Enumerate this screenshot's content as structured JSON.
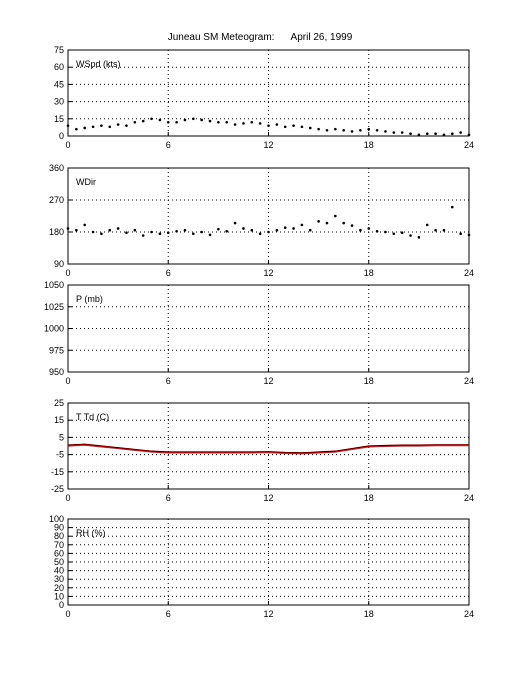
{
  "title": "Juneau SM Meteogram:      April 26, 1999",
  "chart_data": [
    {
      "type": "scatter",
      "ylabel": "WSpd (kts)",
      "xlim": [
        0,
        24
      ],
      "ylim": [
        0,
        75
      ],
      "xticks": [
        0,
        6,
        12,
        18,
        24
      ],
      "yticks": [
        0,
        15,
        30,
        45,
        60,
        75
      ],
      "grid": true,
      "series": [
        {
          "color": "#000000",
          "x": [
            0,
            0.5,
            1,
            1.5,
            2,
            2.5,
            3,
            3.5,
            4,
            4.5,
            5,
            5.5,
            6,
            6.5,
            7,
            7.5,
            8,
            8.5,
            9,
            9.5,
            10,
            10.5,
            11,
            11.5,
            12,
            12.5,
            13,
            13.5,
            14,
            14.5,
            15,
            15.5,
            16,
            16.5,
            17,
            17.5,
            18,
            18.5,
            19,
            19.5,
            20,
            20.5,
            21,
            21.5,
            22,
            22.5,
            23,
            23.5,
            24
          ],
          "y": [
            9,
            6,
            7,
            8,
            9,
            8,
            10,
            9,
            12,
            13,
            15,
            14,
            12,
            12,
            14,
            15,
            14,
            13,
            12,
            12,
            10,
            11,
            12,
            11,
            9,
            10,
            8,
            9,
            8,
            7,
            6,
            5,
            6,
            5,
            4,
            5,
            6,
            5,
            4,
            3,
            3,
            2,
            1,
            2,
            2,
            1,
            2,
            3,
            1
          ]
        }
      ]
    },
    {
      "type": "scatter",
      "ylabel": "WDir",
      "xlim": [
        0,
        24
      ],
      "ylim": [
        90,
        360
      ],
      "xticks": [
        0,
        6,
        12,
        18,
        24
      ],
      "yticks": [
        90,
        180,
        270,
        360
      ],
      "grid": true,
      "series": [
        {
          "color": "#000000",
          "x": [
            0,
            0.5,
            1,
            1.5,
            2,
            2.5,
            3,
            3.5,
            4,
            4.5,
            5,
            5.5,
            6,
            6.5,
            7,
            7.5,
            8,
            8.5,
            9,
            9.5,
            10,
            10.5,
            11,
            11.5,
            12,
            12.5,
            13,
            13.5,
            14,
            14.5,
            15,
            15.5,
            16,
            16.5,
            17,
            17.5,
            18,
            18.5,
            19,
            19.5,
            20,
            20.5,
            21,
            21.5,
            22,
            22.5,
            23,
            23.5,
            24
          ],
          "y": [
            190,
            185,
            200,
            180,
            175,
            185,
            190,
            178,
            185,
            170,
            180,
            175,
            178,
            182,
            185,
            175,
            180,
            172,
            188,
            182,
            205,
            190,
            185,
            175,
            180,
            185,
            192,
            190,
            200,
            185,
            210,
            205,
            225,
            205,
            198,
            185,
            190,
            182,
            180,
            175,
            178,
            170,
            165,
            200,
            185,
            185,
            250,
            175,
            172
          ]
        }
      ]
    },
    {
      "type": "line",
      "ylabel": "P (mb)",
      "xlim": [
        0,
        24
      ],
      "ylim": [
        950,
        1050
      ],
      "xticks": [
        0,
        6,
        12,
        18,
        24
      ],
      "yticks": [
        950,
        975,
        1000,
        1025,
        1050
      ],
      "grid": true,
      "series": []
    },
    {
      "type": "line",
      "ylabel": "T Td (C)",
      "xlim": [
        0,
        24
      ],
      "ylim": [
        -25,
        25
      ],
      "xticks": [
        0,
        6,
        12,
        18,
        24
      ],
      "yticks": [
        -25,
        -15,
        -5,
        5,
        15,
        25
      ],
      "grid": true,
      "series": [
        {
          "color": "#000000",
          "x": [
            0,
            1,
            2,
            3,
            4,
            5,
            6,
            7,
            8,
            9,
            10,
            11,
            12,
            13,
            14,
            15,
            16,
            17,
            18,
            19,
            20,
            21,
            22,
            23,
            24
          ],
          "y": [
            0.5,
            1,
            0,
            -1,
            -2,
            -3,
            -3.5,
            -3.5,
            -3.5,
            -3.5,
            -3.5,
            -3.5,
            -3.3,
            -3.8,
            -4,
            -3.5,
            -3,
            -1.5,
            0,
            0.3,
            0.5,
            0.5,
            0.7,
            0.7,
            0.7
          ]
        },
        {
          "color": "#ff0000",
          "x": [
            0,
            1,
            2,
            3,
            4,
            5,
            6,
            7,
            8,
            9,
            10,
            11,
            12,
            13,
            14,
            15,
            16,
            17,
            18,
            19,
            20,
            21,
            22,
            23,
            24
          ],
          "y": [
            0,
            0.5,
            -0.5,
            -1.5,
            -2.5,
            -3.5,
            -4,
            -4,
            -4,
            -4,
            -4,
            -4,
            -3.8,
            -4.3,
            -4.5,
            -4,
            -3.5,
            -2,
            -0.5,
            -0.2,
            0,
            0,
            0.2,
            0.2,
            0.2
          ]
        }
      ]
    },
    {
      "type": "line",
      "ylabel": "RH (%)",
      "xlim": [
        0,
        24
      ],
      "ylim": [
        0,
        100
      ],
      "xticks": [
        0,
        6,
        12,
        18,
        24
      ],
      "yticks": [
        0,
        10,
        20,
        30,
        40,
        50,
        60,
        70,
        80,
        90,
        100
      ],
      "grid": true,
      "series": []
    }
  ]
}
